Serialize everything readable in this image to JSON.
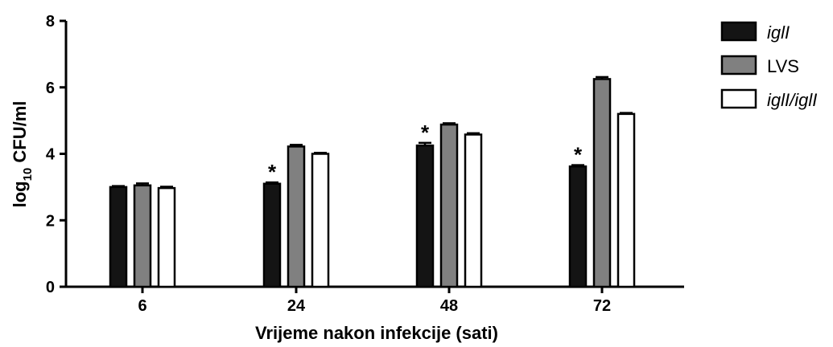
{
  "chart_data": {
    "type": "bar",
    "categories": [
      "6",
      "24",
      "48",
      "72"
    ],
    "series": [
      {
        "name": "iglI",
        "italic": true,
        "color": "#141414",
        "values": [
          3.0,
          3.1,
          4.25,
          3.62
        ],
        "errors": [
          0.03,
          0.04,
          0.08,
          0.04
        ]
      },
      {
        "name": "LVS",
        "italic": false,
        "color": "#808080",
        "values": [
          3.05,
          4.22,
          4.88,
          6.25
        ],
        "errors": [
          0.06,
          0.05,
          0.04,
          0.06
        ]
      },
      {
        "name": "iglI/iglI",
        "italic": true,
        "color": "#ffffff",
        "values": [
          2.97,
          4.0,
          4.58,
          5.2
        ],
        "errors": [
          0.04,
          0.03,
          0.04,
          0.03
        ]
      }
    ],
    "significance": [
      {
        "category": "24",
        "series": "iglI",
        "mark": "*"
      },
      {
        "category": "48",
        "series": "iglI",
        "mark": "*"
      },
      {
        "category": "72",
        "series": "iglI",
        "mark": "*"
      }
    ],
    "xlabel": "Vrijeme nakon infekcije (sati)",
    "ylabel_base": "log",
    "ylabel_sub": "10",
    "ylabel_rest": " CFU/ml",
    "ylim": [
      0,
      8
    ],
    "yticks": [
      "0",
      "2",
      "4",
      "6",
      "8"
    ],
    "legend_position": "top-right",
    "grid": false
  }
}
